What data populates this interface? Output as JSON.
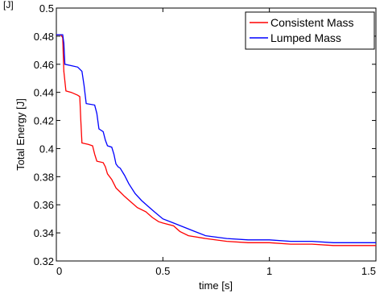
{
  "chart_data": {
    "type": "line",
    "corner_label": "[J]",
    "xlabel": "time [s]",
    "ylabel": "Total Energy [J]",
    "xlim": [
      0,
      1.5
    ],
    "ylim": [
      0.32,
      0.5
    ],
    "x_ticks": [
      "0",
      "0.5",
      "1",
      "1.5"
    ],
    "y_ticks": [
      "0.32",
      "0.34",
      "0.36",
      "0.38",
      "0.4",
      "0.42",
      "0.44",
      "0.46",
      "0.48",
      "0.5"
    ],
    "grid": false,
    "legend_position": "top-right",
    "series": [
      {
        "name": "Consistent Mass",
        "color": "#ff0000",
        "points": [
          [
            0,
            0.481
          ],
          [
            0.02,
            0.481
          ],
          [
            0.03,
            0.479
          ],
          [
            0.035,
            0.455
          ],
          [
            0.045,
            0.441
          ],
          [
            0.07,
            0.44
          ],
          [
            0.1,
            0.438
          ],
          [
            0.11,
            0.437
          ],
          [
            0.115,
            0.42
          ],
          [
            0.12,
            0.404
          ],
          [
            0.15,
            0.403
          ],
          [
            0.17,
            0.402
          ],
          [
            0.18,
            0.396
          ],
          [
            0.19,
            0.391
          ],
          [
            0.22,
            0.39
          ],
          [
            0.23,
            0.387
          ],
          [
            0.24,
            0.382
          ],
          [
            0.26,
            0.378
          ],
          [
            0.28,
            0.372
          ],
          [
            0.3,
            0.369
          ],
          [
            0.32,
            0.366
          ],
          [
            0.35,
            0.362
          ],
          [
            0.38,
            0.358
          ],
          [
            0.42,
            0.355
          ],
          [
            0.45,
            0.351
          ],
          [
            0.48,
            0.348
          ],
          [
            0.5,
            0.347
          ],
          [
            0.55,
            0.345
          ],
          [
            0.58,
            0.341
          ],
          [
            0.62,
            0.338
          ],
          [
            0.7,
            0.336
          ],
          [
            0.8,
            0.334
          ],
          [
            0.9,
            0.333
          ],
          [
            1.0,
            0.333
          ],
          [
            1.1,
            0.332
          ],
          [
            1.2,
            0.332
          ],
          [
            1.3,
            0.331
          ],
          [
            1.4,
            0.331
          ],
          [
            1.5,
            0.331
          ]
        ]
      },
      {
        "name": "Lumped Mass",
        "color": "#0000ff",
        "points": [
          [
            0,
            0.481
          ],
          [
            0.03,
            0.481
          ],
          [
            0.035,
            0.475
          ],
          [
            0.04,
            0.46
          ],
          [
            0.07,
            0.459
          ],
          [
            0.1,
            0.458
          ],
          [
            0.12,
            0.455
          ],
          [
            0.13,
            0.445
          ],
          [
            0.14,
            0.432
          ],
          [
            0.18,
            0.431
          ],
          [
            0.19,
            0.425
          ],
          [
            0.2,
            0.414
          ],
          [
            0.22,
            0.412
          ],
          [
            0.23,
            0.406
          ],
          [
            0.24,
            0.402
          ],
          [
            0.26,
            0.401
          ],
          [
            0.27,
            0.396
          ],
          [
            0.28,
            0.389
          ],
          [
            0.29,
            0.387
          ],
          [
            0.3,
            0.386
          ],
          [
            0.32,
            0.381
          ],
          [
            0.34,
            0.375
          ],
          [
            0.37,
            0.368
          ],
          [
            0.4,
            0.363
          ],
          [
            0.43,
            0.359
          ],
          [
            0.46,
            0.355
          ],
          [
            0.5,
            0.35
          ],
          [
            0.55,
            0.347
          ],
          [
            0.6,
            0.344
          ],
          [
            0.65,
            0.341
          ],
          [
            0.7,
            0.338
          ],
          [
            0.8,
            0.336
          ],
          [
            0.9,
            0.335
          ],
          [
            1.0,
            0.335
          ],
          [
            1.1,
            0.334
          ],
          [
            1.2,
            0.334
          ],
          [
            1.3,
            0.333
          ],
          [
            1.4,
            0.333
          ],
          [
            1.5,
            0.333
          ]
        ]
      }
    ]
  }
}
